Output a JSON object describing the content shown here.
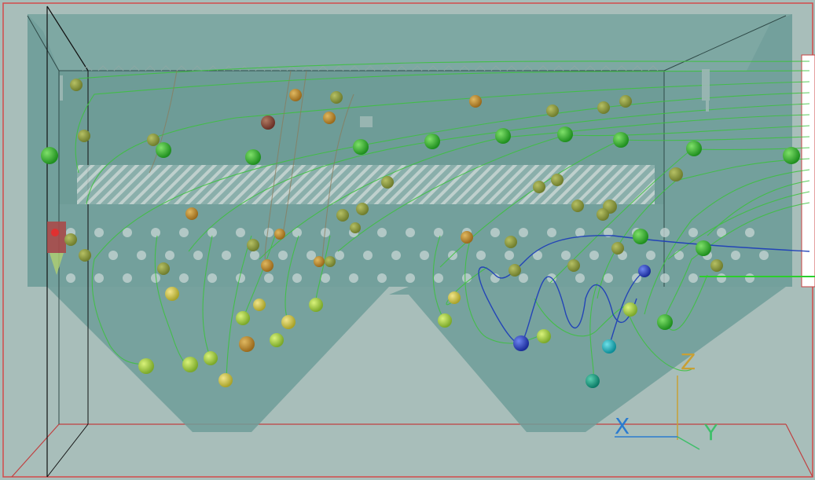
{
  "viewport": {
    "axis_labels": {
      "x": "X",
      "y": "Y",
      "z": "Z"
    },
    "colors": {
      "background": "#a8beba",
      "tank_body": "#6e9c98",
      "tank_top": "#7da6a2",
      "frame_red": "#c83030",
      "streamline_green": "#3cc23c",
      "streamline_blue": "#2540c0",
      "perforated_plate_stripe": "#cdd9d7",
      "axis_x": "#2a7bd0",
      "axis_y": "#3fbf6a",
      "axis_z": "#c8a035",
      "particle_palette": [
        "#2ea82a",
        "#9cc43a",
        "#c9b640",
        "#b8902a",
        "#8a4a3a",
        "#2a48b8",
        "#1aa7b0",
        "#1a9a8a"
      ]
    }
  }
}
